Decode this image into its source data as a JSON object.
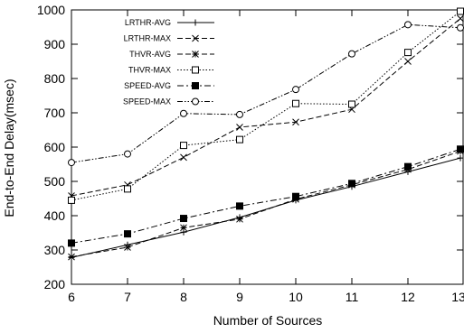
{
  "chart_data": {
    "type": "line",
    "xlabel": "Number of Sources",
    "ylabel": "End-to-End Delay(msec)",
    "x": [
      6,
      7,
      8,
      9,
      10,
      11,
      12,
      13
    ],
    "xlim": [
      6,
      13
    ],
    "ylim": [
      200,
      1000
    ],
    "xticks": [
      "6",
      "7",
      "8",
      "9",
      "10",
      "11",
      "12",
      "13"
    ],
    "yticks": [
      "200",
      "300",
      "400",
      "500",
      "600",
      "700",
      "800",
      "900",
      "1000"
    ],
    "grid": false,
    "legend_position": "top-left",
    "series": [
      {
        "name": "LRTHR-AVG",
        "marker": "plus",
        "dash": "solid",
        "values": [
          278,
          315,
          352,
          395,
          445,
          485,
          528,
          568
        ]
      },
      {
        "name": "LRTHR-MAX",
        "marker": "cross",
        "dash": "dashed",
        "values": [
          458,
          490,
          570,
          658,
          673,
          710,
          850,
          975
        ]
      },
      {
        "name": "THVR-AVG",
        "marker": "star",
        "dash": "dashed",
        "values": [
          280,
          308,
          365,
          390,
          448,
          490,
          535,
          588
        ]
      },
      {
        "name": "THVR-MAX",
        "marker": "open-square",
        "dash": "dotted",
        "values": [
          445,
          478,
          605,
          622,
          727,
          725,
          876,
          996
        ]
      },
      {
        "name": "SPEED-AVG",
        "marker": "filled-square",
        "dash": "dashdot",
        "values": [
          320,
          347,
          392,
          428,
          456,
          494,
          543,
          594
        ]
      },
      {
        "name": "SPEED-MAX",
        "marker": "open-circle",
        "dash": "dashdotdot",
        "values": [
          555,
          580,
          698,
          695,
          768,
          872,
          957,
          948
        ]
      }
    ]
  }
}
